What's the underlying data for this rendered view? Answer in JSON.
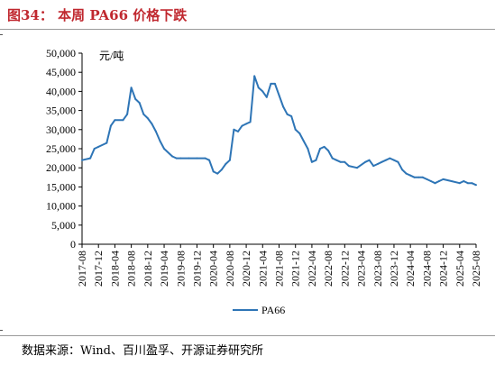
{
  "header": {
    "title": "图34：  本周 PA66 价格下跌"
  },
  "footer": {
    "source": "数据来源：Wind、百川盈孚、开源证券研究所"
  },
  "chart_data": {
    "type": "line",
    "unit_label": "元/吨",
    "ylim": [
      0,
      50000
    ],
    "yticks": [
      0,
      5000,
      10000,
      15000,
      20000,
      25000,
      30000,
      35000,
      40000,
      45000,
      50000
    ],
    "ytick_labels": [
      "0",
      "5,000",
      "10,000",
      "15,000",
      "20,000",
      "25,000",
      "30,000",
      "35,000",
      "40,000",
      "45,000",
      "50,000"
    ],
    "xlim": [
      "2017-08",
      "2025-08"
    ],
    "xtick_labels": [
      "2017-08",
      "2017-12",
      "2018-04",
      "2018-08",
      "2018-12",
      "2019-04",
      "2019-08",
      "2019-12",
      "2020-04",
      "2020-08",
      "2020-12",
      "2021-04",
      "2021-08",
      "2021-12",
      "2022-04",
      "2022-08",
      "2022-12",
      "2023-04",
      "2023-08",
      "2023-12",
      "2024-04",
      "2024-08",
      "2024-12",
      "2025-04",
      "2025-08"
    ],
    "grid": false,
    "legend_position": "bottom",
    "series": [
      {
        "name": "PA66",
        "color": "#2e75b6",
        "x": [
          "2017-08",
          "2017-10",
          "2017-11",
          "2017-12",
          "2018-02",
          "2018-03",
          "2018-04",
          "2018-06",
          "2018-07",
          "2018-08",
          "2018-09",
          "2018-10",
          "2018-11",
          "2018-12",
          "2019-01",
          "2019-02",
          "2019-03",
          "2019-04",
          "2019-06",
          "2019-07",
          "2019-08",
          "2019-10",
          "2019-12",
          "2020-02",
          "2020-03",
          "2020-04",
          "2020-05",
          "2020-06",
          "2020-07",
          "2020-08",
          "2020-09",
          "2020-10",
          "2020-11",
          "2020-12",
          "2021-01",
          "2021-02",
          "2021-03",
          "2021-04",
          "2021-05",
          "2021-06",
          "2021-07",
          "2021-08",
          "2021-09",
          "2021-10",
          "2021-11",
          "2021-12",
          "2022-01",
          "2022-02",
          "2022-03",
          "2022-04",
          "2022-05",
          "2022-06",
          "2022-07",
          "2022-08",
          "2022-09",
          "2022-10",
          "2022-11",
          "2022-12",
          "2023-01",
          "2023-03",
          "2023-05",
          "2023-06",
          "2023-07",
          "2023-08",
          "2023-09",
          "2023-10",
          "2023-11",
          "2023-12",
          "2024-01",
          "2024-02",
          "2024-03",
          "2024-04",
          "2024-05",
          "2024-06",
          "2024-07",
          "2024-08",
          "2024-09",
          "2024-10",
          "2024-11",
          "2024-12",
          "2025-02",
          "2025-04",
          "2025-05",
          "2025-06",
          "2025-07",
          "2025-08"
        ],
        "values": [
          22000,
          22500,
          25000,
          25500,
          26500,
          31000,
          32500,
          32500,
          34000,
          41000,
          38000,
          37000,
          34000,
          33000,
          31500,
          29500,
          27000,
          25000,
          23000,
          22500,
          22500,
          22500,
          22500,
          22500,
          22000,
          19000,
          18500,
          19500,
          21000,
          22000,
          30000,
          29500,
          31000,
          31500,
          32000,
          44000,
          41000,
          40000,
          38500,
          42000,
          42000,
          39000,
          36000,
          34000,
          33500,
          30000,
          29000,
          27000,
          25000,
          21500,
          22000,
          25000,
          25500,
          24500,
          22500,
          22000,
          21500,
          21500,
          20500,
          20000,
          21500,
          22000,
          20500,
          21000,
          21500,
          22000,
          22500,
          22000,
          21500,
          19500,
          18500,
          18000,
          17500,
          17500,
          17500,
          17000,
          16500,
          16000,
          16500,
          17000,
          16500,
          16000,
          16500,
          16000,
          16000,
          15500
        ]
      }
    ]
  }
}
